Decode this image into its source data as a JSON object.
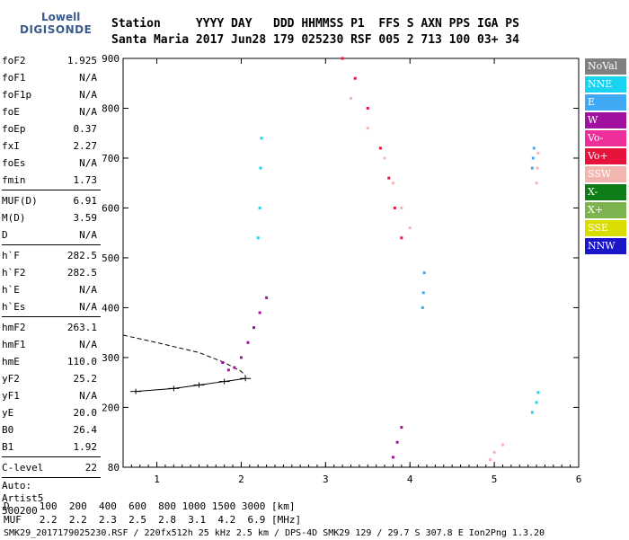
{
  "logo": {
    "line1": "Lowell",
    "line2": "DIGISONDE"
  },
  "header": {
    "line1": "Station     YYYY DAY   DDD HHMMSS P1  FFS S AXN PPS IGA PS",
    "line2": "Santa Maria 2017 Jun28 179 025230 RSF 005 2 713 100 03+ 34"
  },
  "params": {
    "group1": [
      {
        "k": "foF2",
        "v": "1.925"
      },
      {
        "k": "foF1",
        "v": "N/A"
      },
      {
        "k": "foF1p",
        "v": "N/A"
      },
      {
        "k": "foE",
        "v": "N/A"
      },
      {
        "k": "foEp",
        "v": "0.37"
      },
      {
        "k": "fxI",
        "v": "2.27"
      },
      {
        "k": "foEs",
        "v": "N/A"
      },
      {
        "k": "fmin",
        "v": "1.73"
      }
    ],
    "group2": [
      {
        "k": "MUF(D)",
        "v": "6.91"
      },
      {
        "k": "M(D)",
        "v": "3.59"
      },
      {
        "k": "D",
        "v": "N/A"
      }
    ],
    "group3": [
      {
        "k": "h`F",
        "v": "282.5"
      },
      {
        "k": "h`F2",
        "v": "282.5"
      },
      {
        "k": "h`E",
        "v": "N/A"
      },
      {
        "k": "h`Es",
        "v": "N/A"
      }
    ],
    "group4": [
      {
        "k": "hmF2",
        "v": "263.1"
      },
      {
        "k": "hmF1",
        "v": "N/A"
      },
      {
        "k": "hmE",
        "v": "110.0"
      },
      {
        "k": "yF2",
        "v": "25.2"
      },
      {
        "k": "yF1",
        "v": "N/A"
      },
      {
        "k": "yE",
        "v": "20.0"
      },
      {
        "k": "B0",
        "v": "26.4"
      },
      {
        "k": "B1",
        "v": "1.92"
      }
    ],
    "group5": [
      {
        "k": "C-level",
        "v": "22"
      }
    ],
    "auto": [
      "Auto:",
      "Artist5",
      "500200"
    ]
  },
  "legend": [
    {
      "label": "NoVal",
      "color": "#808080"
    },
    {
      "label": "NNE",
      "color": "#19d3f0"
    },
    {
      "label": "E",
      "color": "#3fa9f5"
    },
    {
      "label": "W",
      "color": "#a0129e"
    },
    {
      "label": "Vo-",
      "color": "#ee2f9b"
    },
    {
      "label": "Vo+",
      "color": "#e6133d"
    },
    {
      "label": "SSW",
      "color": "#f2b6b0"
    },
    {
      "label": "X-",
      "color": "#0f7d17"
    },
    {
      "label": "X+",
      "color": "#7db34f"
    },
    {
      "label": "SSE",
      "color": "#d9dd00"
    },
    {
      "label": "NNW",
      "color": "#1b17c8"
    }
  ],
  "chart_data": {
    "type": "scatter",
    "xlabel": "",
    "ylabel": "",
    "xlim": [
      0.6,
      6.0
    ],
    "ylim": [
      80,
      900
    ],
    "xticks": [
      1,
      2,
      3,
      4,
      5,
      6
    ],
    "yticks": [
      80,
      200,
      300,
      400,
      500,
      600,
      700,
      800,
      900
    ],
    "traces": [
      {
        "name": "F2",
        "color": "#a0129e",
        "x": [
          1.78,
          1.85,
          1.92,
          2.0,
          2.08,
          2.15,
          2.22,
          2.3
        ],
        "y": [
          290,
          275,
          280,
          300,
          330,
          360,
          390,
          420
        ]
      },
      {
        "name": "",
        "color": "#19d3f0",
        "x": [
          2.2,
          2.22,
          2.23,
          2.24
        ],
        "y": [
          540,
          600,
          680,
          740
        ]
      },
      {
        "name": "",
        "color": "#e6133d",
        "x": [
          3.2,
          3.35,
          3.5,
          3.65,
          3.75,
          3.82,
          3.9
        ],
        "y": [
          900,
          860,
          800,
          720,
          660,
          600,
          540
        ]
      },
      {
        "name": "",
        "color": "#f2b6b0",
        "x": [
          3.3,
          3.5,
          3.7,
          3.8,
          3.9,
          4.0
        ],
        "y": [
          820,
          760,
          700,
          650,
          600,
          560
        ]
      },
      {
        "name": "",
        "color": "#3fa9f5",
        "x": [
          4.15,
          4.16,
          4.17
        ],
        "y": [
          400,
          430,
          470
        ]
      },
      {
        "name": "",
        "color": "#3fa9f5",
        "x": [
          5.45,
          5.46,
          5.47
        ],
        "y": [
          680,
          700,
          720
        ]
      },
      {
        "name": "",
        "color": "#f2b6b0",
        "x": [
          5.5,
          5.51,
          5.52
        ],
        "y": [
          650,
          680,
          710
        ]
      },
      {
        "name": "",
        "color": "#19d3f0",
        "x": [
          5.45,
          5.5,
          5.52
        ],
        "y": [
          190,
          210,
          230
        ]
      },
      {
        "name": "",
        "color": "#a0129e",
        "x": [
          3.8,
          3.85,
          3.9
        ],
        "y": [
          100,
          130,
          160
        ]
      },
      {
        "name": "",
        "color": "#f2b6b0",
        "x": [
          4.95,
          5.0,
          5.1
        ],
        "y": [
          95,
          110,
          125
        ]
      }
    ],
    "profile": {
      "x": [
        0.6,
        1.0,
        1.5,
        1.8,
        2.0,
        2.05
      ],
      "y": [
        345,
        330,
        310,
        290,
        272,
        263
      ]
    },
    "vline": {
      "x": [
        0.75,
        1.2,
        1.5,
        1.8,
        2.05
      ],
      "y": [
        232,
        238,
        245,
        252,
        258
      ]
    }
  },
  "footer": {
    "d_line": "D     100  200  400  600  800 1000 1500 3000 [km]",
    "muf_line": "MUF   2.2  2.2  2.3  2.5  2.8  3.1  4.2  6.9 [MHz]",
    "source": "SMK29_2017179025230.RSF / 220fx512h 25 kHz 2.5 km / DPS-4D SMK29 129 / 29.7 S 307.8 E Ion2Png 1.3.20"
  }
}
